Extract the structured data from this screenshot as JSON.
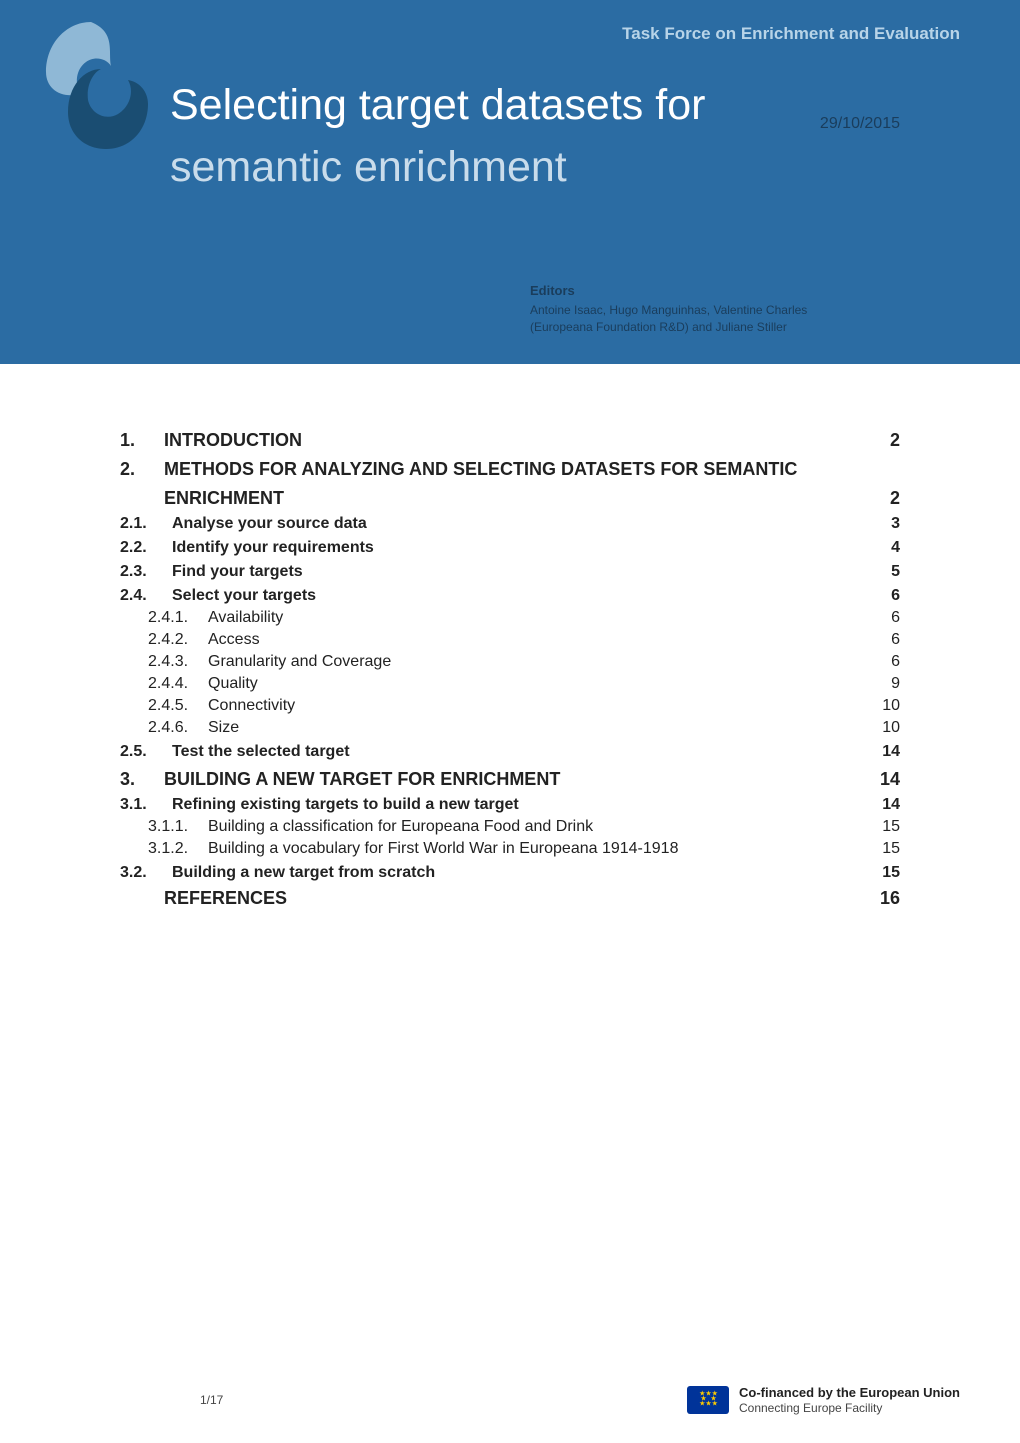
{
  "header": {
    "breadcrumb": "Task Force on Enrichment and Evaluation",
    "title_line1": "Selecting target datasets for",
    "title_line2": "semantic enrichment",
    "date": "29/10/2015",
    "editors_heading": "Editors",
    "editors_line1": "Antoine Isaac, Hugo Manguinhas, Valentine Charles",
    "editors_line2": "(Europeana Foundation R&D) and Juliane Stiller",
    "band_color": "#2b6ca3",
    "title_color_active": "#ffffff",
    "title_color_muted": "#c9dceb"
  },
  "logo": {
    "name": "europeana-logo",
    "upper_fill": "#8fb8d6",
    "lower_fill": "#1a4d72"
  },
  "toc": [
    {
      "level": 1,
      "num": "1.",
      "label": "INTRODUCTION",
      "page": "2"
    },
    {
      "level": 1,
      "num": "2.",
      "label": "METHODS FOR ANALYZING AND SELECTING DATASETS FOR SEMANTIC",
      "page": ""
    },
    {
      "level": 1,
      "num": "",
      "label": "ENRICHMENT",
      "page": "2",
      "continuation": true
    },
    {
      "level": 2,
      "num": "2.1.",
      "label": "Analyse your source data",
      "page": "3"
    },
    {
      "level": 2,
      "num": "2.2.",
      "label": "Identify your requirements",
      "page": "4"
    },
    {
      "level": 2,
      "num": "2.3.",
      "label": "Find your targets",
      "page": "5"
    },
    {
      "level": 2,
      "num": "2.4.",
      "label": "Select your targets",
      "page": "6"
    },
    {
      "level": 3,
      "num": "2.4.1.",
      "label": "Availability",
      "page": "6"
    },
    {
      "level": 3,
      "num": "2.4.2.",
      "label": "Access",
      "page": "6"
    },
    {
      "level": 3,
      "num": "2.4.3.",
      "label": "Granularity and Coverage",
      "page": "6"
    },
    {
      "level": 3,
      "num": "2.4.4.",
      "label": "Quality",
      "page": "9"
    },
    {
      "level": 3,
      "num": "2.4.5.",
      "label": "Connectivity",
      "page": "10"
    },
    {
      "level": 3,
      "num": "2.4.6.",
      "label": "Size",
      "page": "10"
    },
    {
      "level": 2,
      "num": "2.5.",
      "label": "Test the selected target",
      "page": "14"
    },
    {
      "level": 1,
      "num": "3.",
      "label": "BUILDING A NEW TARGET FOR ENRICHMENT",
      "page": "14",
      "special": true
    },
    {
      "level": 2,
      "num": "3.1.",
      "label": "Refining existing targets to build a new target",
      "page": "14"
    },
    {
      "level": 3,
      "num": "3.1.1.",
      "label": "Building a classification for Europeana Food and Drink",
      "page": "15"
    },
    {
      "level": 3,
      "num": "3.1.2.",
      "label": "Building a vocabulary for First World War in Europeana 1914-1918",
      "page": "15"
    },
    {
      "level": 2,
      "num": "3.2.",
      "label": "Building a new target from scratch",
      "page": "15"
    },
    {
      "level": 0,
      "num": "",
      "label": "REFERENCES",
      "page": "16",
      "refs": true
    }
  ],
  "footer": {
    "page_number": "1/17",
    "eu_line1": "Co-financed by the European Union",
    "eu_line2": "Connecting Europe Facility",
    "eu_flag_bg": "#003399",
    "eu_star_color": "#ffcc00"
  },
  "typography": {
    "title_fontsize": 43,
    "l1_fontsize": 18,
    "l2_fontsize": 16,
    "l3_fontsize": 16,
    "editors_heading_fontsize": 13,
    "editors_text_fontsize": 12
  },
  "colors": {
    "page_bg": "#ffffff",
    "text": "#222222",
    "header_text_dark": "#1a3d5c",
    "breadcrumb_color": "#b8d4e8"
  }
}
